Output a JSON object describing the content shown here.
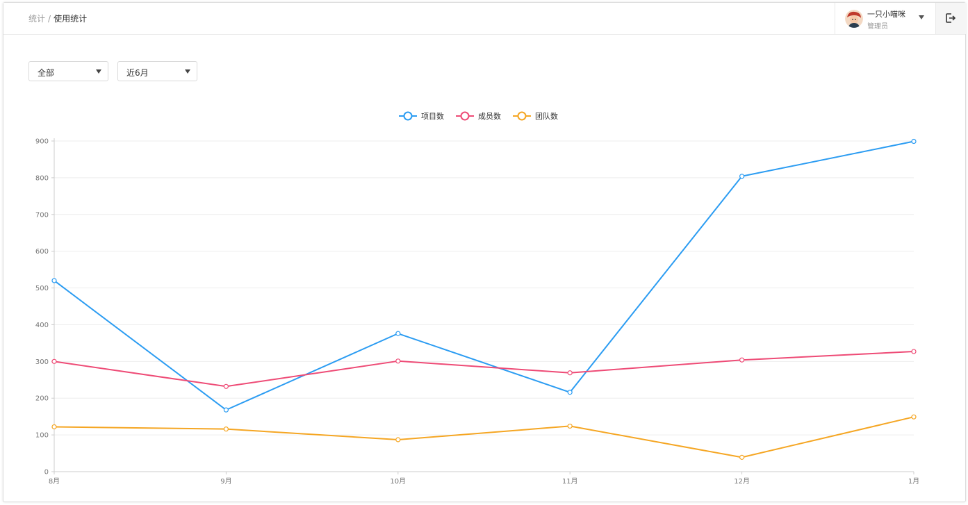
{
  "breadcrumb": {
    "root": "统计",
    "separator": "/",
    "current": "使用统计"
  },
  "user": {
    "name": "一只小喵咪",
    "role": "管理员",
    "avatar_icon": "avatar-icon",
    "menu_icon": "caret-down-icon"
  },
  "logout": {
    "icon": "logout-icon"
  },
  "filters": {
    "scope": {
      "value": "全部",
      "icon": "caret-down-icon"
    },
    "range": {
      "value": "近6月",
      "icon": "caret-down-icon"
    }
  },
  "chart_data": {
    "type": "line",
    "categories": [
      "8月",
      "9月",
      "10月",
      "11月",
      "12月",
      "1月"
    ],
    "series": [
      {
        "name": "项目数",
        "color": "#2b9cf2",
        "values": [
          520,
          168,
          376,
          216,
          804,
          899
        ]
      },
      {
        "name": "成员数",
        "color": "#ee4b76",
        "values": [
          300,
          232,
          301,
          269,
          304,
          327
        ]
      },
      {
        "name": "团队数",
        "color": "#f5a623",
        "values": [
          122,
          116,
          87,
          124,
          39,
          149
        ]
      }
    ],
    "ylim": [
      0,
      900
    ],
    "yticks": [
      0,
      100,
      200,
      300,
      400,
      500,
      600,
      700,
      800,
      900
    ],
    "grid": true,
    "legend": "top-center"
  }
}
